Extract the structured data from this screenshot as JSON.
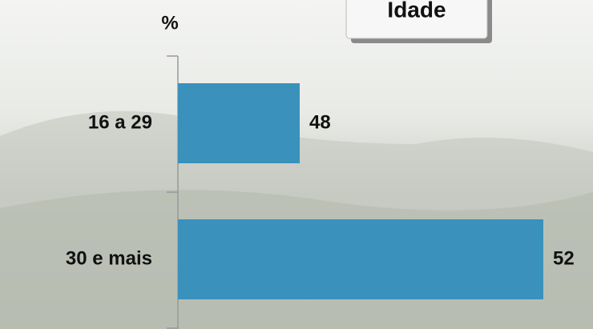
{
  "chart_data": {
    "type": "bar",
    "orientation": "horizontal",
    "title": "Idade",
    "ylabel": "%",
    "categories": [
      "16 a 29",
      "30 e mais"
    ],
    "values": [
      48,
      52
    ],
    "color": "#3a91bb",
    "xlim": [
      46,
      52
    ]
  }
}
